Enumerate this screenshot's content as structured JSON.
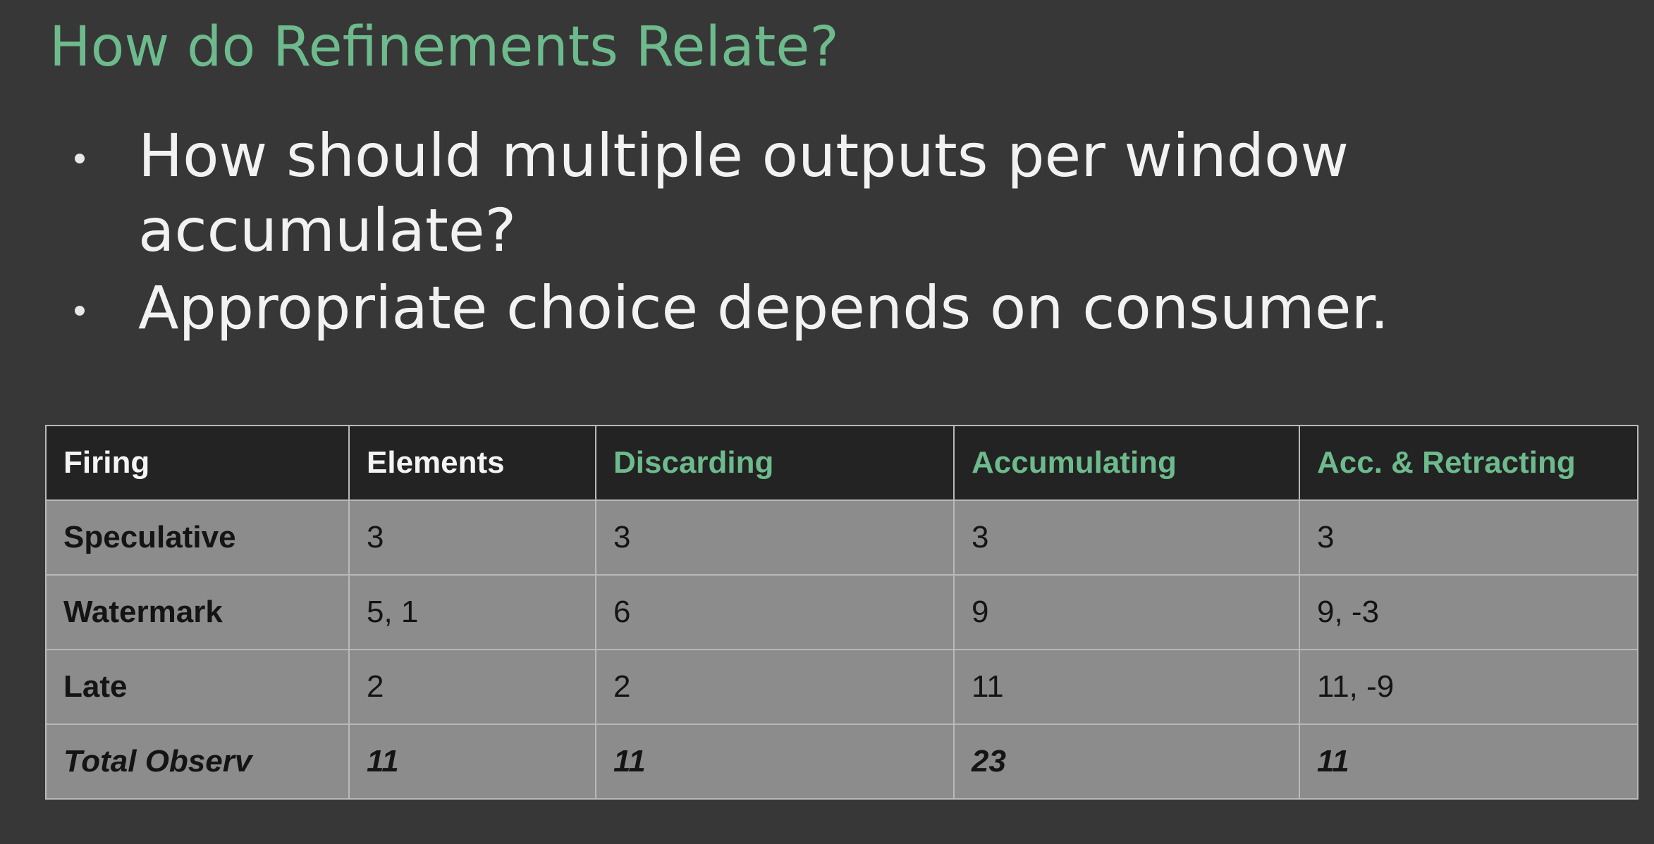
{
  "slide": {
    "title": "How do Refinements Relate?",
    "bullets": [
      "How should multiple outputs per window accumulate?",
      "Appropriate choice depends on consumer."
    ]
  },
  "table": {
    "headers": [
      "Firing",
      "Elements",
      "Discarding",
      "Accumulating",
      "Acc. & Retracting"
    ],
    "rows": [
      [
        "Speculative",
        "3",
        "3",
        "3",
        "3"
      ],
      [
        "Watermark",
        "5, 1",
        "6",
        "9",
        "9, -3"
      ],
      [
        "Late",
        "2",
        "2",
        "11",
        "11, -9"
      ],
      [
        "Total Observ",
        "11",
        "11",
        "23",
        "11"
      ]
    ]
  },
  "colors": {
    "background": "#373737",
    "title_accent": "#6dbb8d",
    "header_bg": "#232323",
    "cell_bg": "#8c8c8c"
  }
}
